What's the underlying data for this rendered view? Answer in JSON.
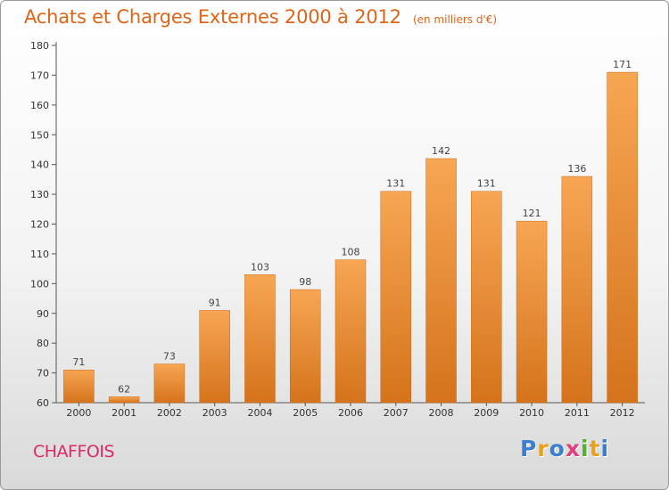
{
  "title": "Achats et Charges Externes 2000 à 2012",
  "subtitle": "(en milliers d'€)",
  "commune": "CHAFFOIS",
  "logo": {
    "text": "Proxiti",
    "letters": [
      {
        "ch": "P",
        "color": "#3a7fd0"
      },
      {
        "ch": "r",
        "color": "#e8a020"
      },
      {
        "ch": "o",
        "color": "#3a7fd0"
      },
      {
        "ch": "x",
        "color": "#e04080"
      },
      {
        "ch": "i",
        "color": "#56b030"
      },
      {
        "ch": "t",
        "color": "#e8a020"
      },
      {
        "ch": "i",
        "color": "#3a7fd0"
      }
    ]
  },
  "colors": {
    "bar_top": "#f7a653",
    "bar_bottom": "#d5731c",
    "title": "#e06418",
    "commune": "#d82a6a"
  },
  "chart_data": {
    "type": "bar",
    "categories": [
      "2000",
      "2001",
      "2002",
      "2003",
      "2004",
      "2005",
      "2006",
      "2007",
      "2008",
      "2009",
      "2010",
      "2011",
      "2012"
    ],
    "values": [
      71,
      62,
      73,
      91,
      103,
      98,
      108,
      131,
      142,
      131,
      121,
      136,
      171
    ],
    "ylim": [
      60,
      180
    ],
    "yticks": [
      60,
      70,
      80,
      90,
      100,
      110,
      120,
      130,
      140,
      150,
      160,
      170,
      180
    ],
    "grid": false,
    "legend": "none"
  }
}
